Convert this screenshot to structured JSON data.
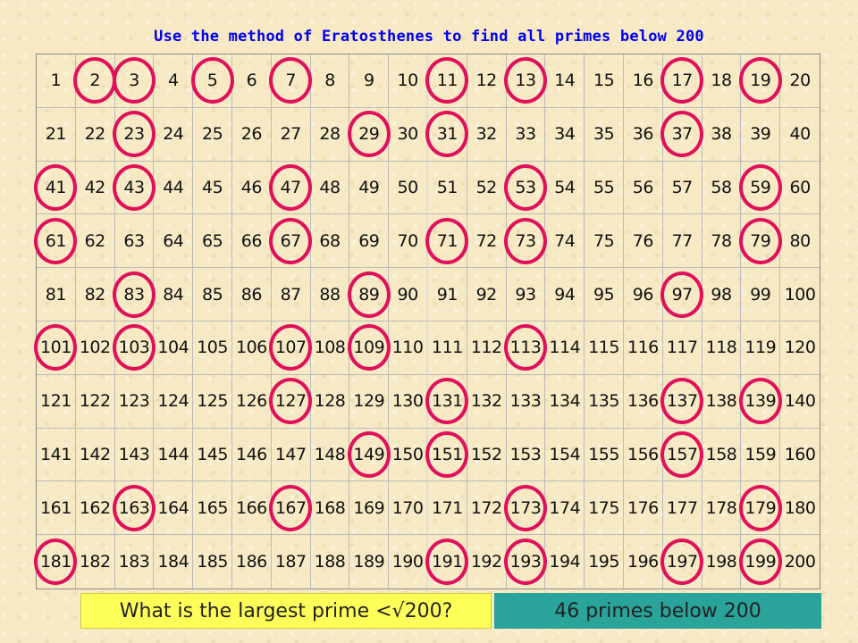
{
  "title": "Use the method of Eratosthenes to find all primes below 200",
  "grid": {
    "rows": [
      [
        "1",
        "2",
        "3",
        "4",
        "5",
        "6",
        "7",
        "8",
        "9",
        "10",
        "11",
        "12",
        "13",
        "14",
        "15",
        "16",
        "17",
        "18",
        "19",
        "20"
      ],
      [
        "21",
        "22",
        "23",
        "24",
        "25",
        "26",
        "27",
        "28",
        "29",
        "30",
        "31",
        "32",
        "33",
        "34",
        "35",
        "36",
        "37",
        "38",
        "39",
        "40"
      ],
      [
        "41",
        "42",
        "43",
        "44",
        "45",
        "46",
        "47",
        "48",
        "49",
        "50",
        "51",
        "52",
        "53",
        "54",
        "55",
        "56",
        "57",
        "58",
        "59",
        "60"
      ],
      [
        "61",
        "62",
        "63",
        "64",
        "65",
        "66",
        "67",
        "68",
        "69",
        "70",
        "71",
        "72",
        "73",
        "74",
        "75",
        "76",
        "77",
        "78",
        "79",
        "80"
      ],
      [
        "81",
        "82",
        "83",
        "84",
        "85",
        "86",
        "87",
        "88",
        "89",
        "90",
        "91",
        "92",
        "93",
        "94",
        "95",
        "96",
        "97",
        "98",
        "99",
        "100"
      ],
      [
        "101",
        "102",
        "103",
        "104",
        "105",
        "106",
        "107",
        "108",
        "109",
        "110",
        "111",
        "112",
        "113",
        "114",
        "115",
        "116",
        "117",
        "118",
        "119",
        "120"
      ],
      [
        "121",
        "122",
        "123",
        "124",
        "125",
        "126",
        "127",
        "128",
        "129",
        "130",
        "131",
        "132",
        "133",
        "134",
        "135",
        "136",
        "137",
        "138",
        "139",
        "140"
      ],
      [
        "141",
        "142",
        "143",
        "144",
        "145",
        "146",
        "147",
        "148",
        "149",
        "150",
        "151",
        "152",
        "153",
        "154",
        "155",
        "156",
        "157",
        "158",
        "159",
        "160"
      ],
      [
        "161",
        "162",
        "163",
        "164",
        "165",
        "166",
        "167",
        "168",
        "169",
        "170",
        "171",
        "172",
        "173",
        "174",
        "175",
        "176",
        "177",
        "178",
        "179",
        "180"
      ],
      [
        "181",
        "182",
        "183",
        "184",
        "185",
        "186",
        "187",
        "188",
        "189",
        "190",
        "191",
        "192",
        "193",
        "194",
        "195",
        "196",
        "197",
        "198",
        "199",
        "200"
      ]
    ],
    "circled": [
      2,
      3,
      5,
      7,
      11,
      13,
      17,
      19,
      23,
      29,
      31,
      37,
      41,
      43,
      47,
      53,
      59,
      61,
      67,
      71,
      73,
      79,
      83,
      89,
      97,
      101,
      103,
      107,
      109,
      113,
      127,
      131,
      137,
      139,
      149,
      151,
      157,
      163,
      167,
      173,
      179,
      181,
      191,
      193,
      197,
      199
    ],
    "circle_color": "#e0105a"
  },
  "question_button": {
    "label": "What is the largest prime <√200?",
    "bg": "#ffff5a"
  },
  "count_button": {
    "label": "46 primes below 200",
    "bg": "#2aa39b"
  }
}
